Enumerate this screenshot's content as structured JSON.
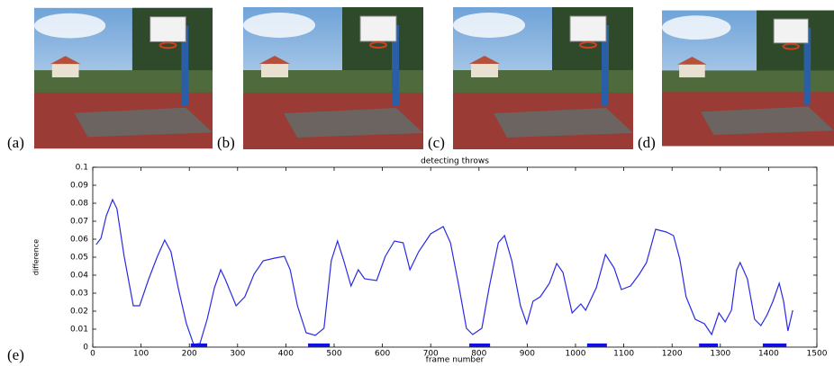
{
  "panel_labels": [
    "(a)",
    "(b)",
    "(c)",
    "(d)",
    "(e)"
  ],
  "chart_data": {
    "type": "line",
    "title": "detecting throws",
    "x_label": "frame number",
    "y_label": "difference",
    "x": [
      7,
      17,
      28,
      41,
      50,
      65,
      84,
      97,
      116,
      134,
      149,
      162,
      177,
      194,
      209,
      222,
      237,
      252,
      265,
      274,
      297,
      315,
      334,
      353,
      377,
      397,
      409,
      424,
      442,
      461,
      479,
      494,
      507,
      520,
      535,
      550,
      563,
      588,
      606,
      625,
      643,
      657,
      675,
      700,
      726,
      741,
      759,
      774,
      787,
      806,
      821,
      840,
      853,
      868,
      886,
      899,
      912,
      927,
      946,
      961,
      974,
      993,
      1011,
      1021,
      1043,
      1062,
      1080,
      1095,
      1114,
      1132,
      1147,
      1166,
      1188,
      1203,
      1216,
      1229,
      1248,
      1267,
      1282,
      1297,
      1310,
      1323,
      1334,
      1341,
      1356,
      1371,
      1384,
      1397,
      1409,
      1422,
      1431,
      1440,
      1450
    ],
    "values": [
      0.057,
      0.0605,
      0.073,
      0.082,
      0.077,
      0.0505,
      0.023,
      0.023,
      0.038,
      0.0505,
      0.0595,
      0.053,
      0.033,
      0.013,
      0.0015,
      0.002,
      0.0155,
      0.033,
      0.043,
      0.038,
      0.023,
      0.028,
      0.0405,
      0.048,
      0.0495,
      0.0505,
      0.043,
      0.023,
      0.008,
      0.0065,
      0.0105,
      0.048,
      0.059,
      0.048,
      0.034,
      0.043,
      0.038,
      0.037,
      0.0505,
      0.059,
      0.058,
      0.043,
      0.053,
      0.063,
      0.067,
      0.058,
      0.033,
      0.0105,
      0.007,
      0.0105,
      0.033,
      0.058,
      0.062,
      0.048,
      0.023,
      0.013,
      0.0255,
      0.028,
      0.0355,
      0.0465,
      0.0415,
      0.019,
      0.024,
      0.0205,
      0.033,
      0.0515,
      0.044,
      0.032,
      0.034,
      0.0405,
      0.047,
      0.0655,
      0.064,
      0.062,
      0.049,
      0.028,
      0.0155,
      0.013,
      0.007,
      0.019,
      0.014,
      0.0205,
      0.043,
      0.047,
      0.038,
      0.0155,
      0.012,
      0.018,
      0.0255,
      0.0355,
      0.0255,
      0.009,
      0.0205
    ],
    "color": "#2a2ae6",
    "intervals": [
      [
        203,
        237
      ],
      [
        446,
        491
      ],
      [
        780,
        823
      ],
      [
        1024,
        1065
      ],
      [
        1256,
        1295
      ],
      [
        1388,
        1437
      ]
    ],
    "interval_color": "#1010e0",
    "xlim": [
      0,
      1500
    ],
    "xticks": [
      0,
      100,
      200,
      300,
      400,
      500,
      600,
      700,
      800,
      900,
      1000,
      1100,
      1200,
      1300,
      1400,
      1500
    ],
    "ylim": [
      0,
      0.1
    ],
    "yticks": [
      0,
      0.01,
      0.02,
      0.03,
      0.04,
      0.05,
      0.06,
      0.07,
      0.08,
      0.09,
      0.1
    ]
  }
}
